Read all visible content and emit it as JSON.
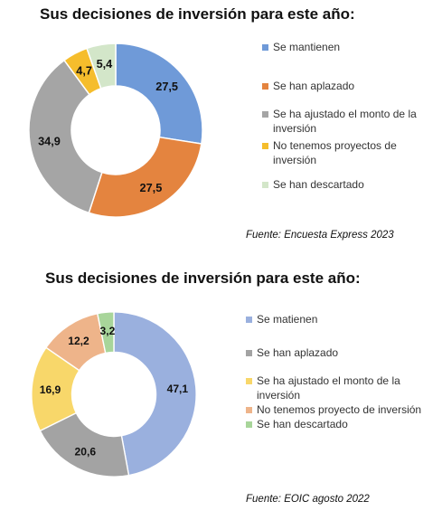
{
  "chart_data": [
    {
      "type": "donut",
      "title": "Sus decisiones de inversión para este año:",
      "categories": [
        "Se mantienen",
        "Se han aplazado",
        "Se ha ajustado el monto de la inversión",
        "No tenemos proyectos de inversión",
        "Se han descartado"
      ],
      "values": [
        27.5,
        27.5,
        34.9,
        4.7,
        5.4
      ],
      "labels": [
        "27,5",
        "27,5",
        "34,9",
        "4,7",
        "5,4"
      ],
      "colors": [
        "#6f9ad8",
        "#e4843f",
        "#a5a5a5",
        "#f5bd2c",
        "#d3e6c9"
      ],
      "legend_position": "right",
      "source": "Fuente: Encuesta Express 2023"
    },
    {
      "type": "donut",
      "title": "Sus decisiones de inversión para este año:",
      "categories": [
        "Se matienen",
        "Se han aplazado",
        "Se ha ajustado el monto de la inversión",
        "No tenemos proyecto de inversión",
        "Se han descartado"
      ],
      "values": [
        47.1,
        20.6,
        16.9,
        12.2,
        3.2
      ],
      "labels": [
        "47,1",
        "20,6",
        "16,9",
        "12,2",
        "3,2"
      ],
      "colors": [
        "#9ab0de",
        "#a3a3a3",
        "#f8d76a",
        "#eeb48a",
        "#a8d59a"
      ],
      "legend_position": "right",
      "source": "Fuente: EOIC agosto 2022"
    }
  ]
}
